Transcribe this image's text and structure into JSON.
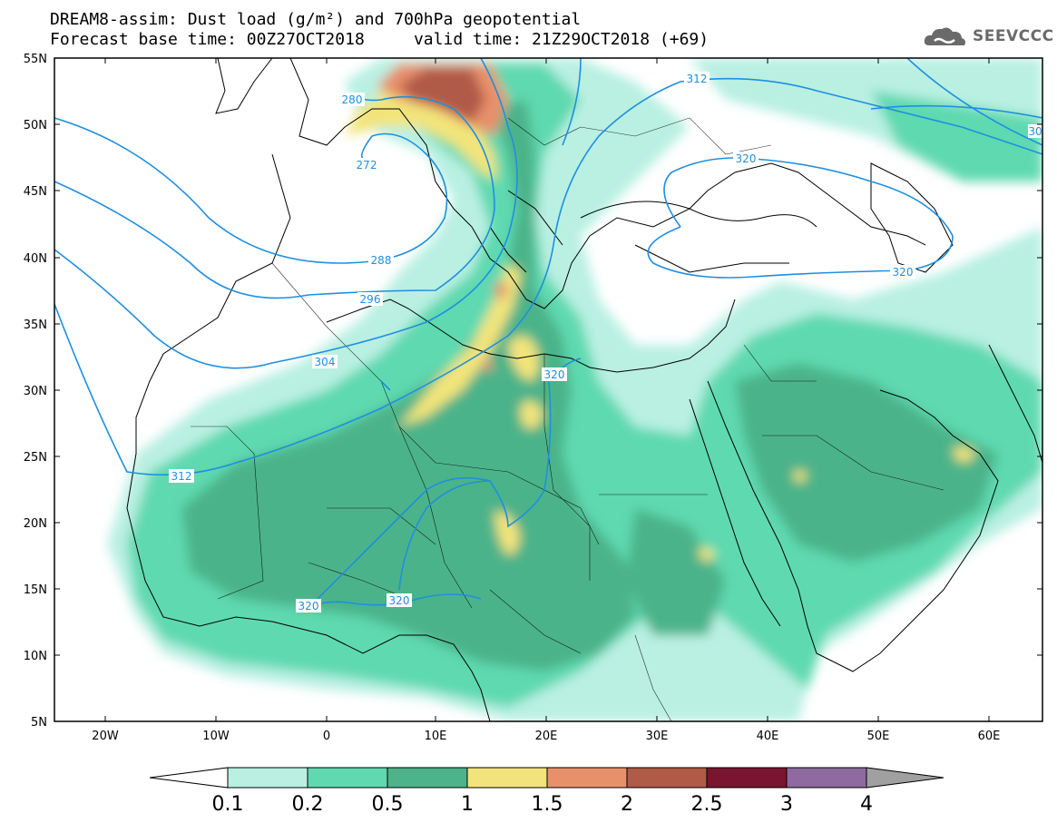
{
  "header": {
    "title_line1": "DREAM8-assim: Dust load (g/m²) and 700hPa geopotential",
    "title_line2": "Forecast base time: 00Z27OCT2018     valid time: 21Z29OCT2018 (+69)",
    "logo_text": "SEEVCCC"
  },
  "map": {
    "lat_labels": [
      "55N",
      "50N",
      "45N",
      "40N",
      "35N",
      "30N",
      "25N",
      "20N",
      "15N",
      "10N",
      "5N"
    ],
    "lon_labels": [
      "20W",
      "10W",
      "0",
      "10E",
      "20E",
      "30E",
      "40E",
      "50E",
      "60E"
    ],
    "contour_labels": [
      {
        "id": "c280",
        "text": "280"
      },
      {
        "id": "c272",
        "text": "272"
      },
      {
        "id": "c288",
        "text": "288"
      },
      {
        "id": "c296",
        "text": "296"
      },
      {
        "id": "c304",
        "text": "304"
      },
      {
        "id": "c312w",
        "text": "312"
      },
      {
        "id": "c312n",
        "text": "312"
      },
      {
        "id": "c320n",
        "text": "320"
      },
      {
        "id": "c320e",
        "text": "320"
      },
      {
        "id": "c320c",
        "text": "320"
      },
      {
        "id": "c320s1",
        "text": "320"
      },
      {
        "id": "c320s2",
        "text": "320"
      },
      {
        "id": "c30x",
        "text": "30"
      }
    ]
  },
  "colorbar": {
    "tick_labels": [
      "0.1",
      "0.2",
      "0.5",
      "1",
      "1.5",
      "2",
      "2.5",
      "3",
      "4"
    ],
    "colors": [
      "#ffffff",
      "#b9f0e2",
      "#5ed9b0",
      "#4cb38a",
      "#f2e47a",
      "#e8906a",
      "#b05a48",
      "#7a1530",
      "#8e6aa0",
      "#a0a0a0"
    ]
  }
}
